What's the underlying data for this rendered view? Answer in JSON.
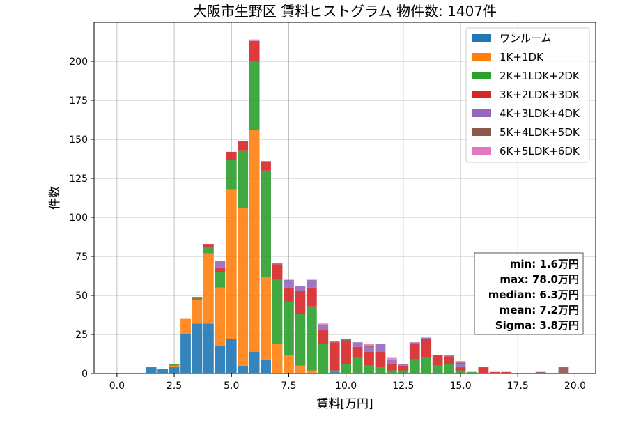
{
  "chart_data": {
    "type": "bar",
    "stacked": true,
    "title": "大阪市生野区 賃料ヒストグラム 物件数: 1407件",
    "xlabel": "賃料[万円]",
    "ylabel": "件数",
    "xlim": [
      -1.0,
      20.9
    ],
    "ylim": [
      0,
      225
    ],
    "xticks": [
      0.0,
      2.5,
      5.0,
      7.5,
      10.0,
      12.5,
      15.0,
      17.5,
      20.0
    ],
    "xtick_labels": [
      "0.0",
      "2.5",
      "5.0",
      "7.5",
      "10.0",
      "12.5",
      "15.0",
      "17.5",
      "20.0"
    ],
    "yticks": [
      0,
      25,
      50,
      75,
      100,
      125,
      150,
      175,
      200
    ],
    "ytick_labels": [
      "0",
      "25",
      "50",
      "75",
      "100",
      "125",
      "150",
      "175",
      "200"
    ],
    "grid": true,
    "bin_width": 0.5,
    "bins": [
      1.5,
      2.0,
      2.5,
      3.0,
      3.5,
      4.0,
      4.5,
      5.0,
      5.5,
      6.0,
      6.5,
      7.0,
      7.5,
      8.0,
      8.5,
      9.0,
      9.5,
      10.0,
      10.5,
      11.0,
      11.5,
      12.0,
      12.5,
      13.0,
      13.5,
      14.0,
      14.5,
      15.0,
      15.5,
      16.0,
      16.5,
      17.0,
      17.5,
      18.0,
      18.5,
      19.0,
      19.5
    ],
    "series": [
      {
        "name": "ワンルーム",
        "color": "#1f77b4",
        "values": [
          4,
          3,
          4,
          25,
          32,
          32,
          18,
          22,
          5,
          14,
          9,
          0,
          0,
          0,
          0,
          0,
          1,
          0,
          0,
          0,
          0,
          0,
          0,
          0,
          0,
          0,
          0,
          0,
          0,
          0,
          0,
          0,
          0,
          0,
          0,
          0,
          0
        ]
      },
      {
        "name": "1K+1DK",
        "color": "#ff7f0e",
        "values": [
          0,
          0,
          1,
          10,
          15,
          45,
          37,
          96,
          101,
          142,
          53,
          19,
          12,
          5,
          2,
          0,
          0,
          0,
          0,
          0,
          0,
          0,
          0,
          0,
          0,
          0,
          0,
          0,
          0,
          0,
          0,
          0,
          0,
          0,
          0,
          0,
          0
        ]
      },
      {
        "name": "2K+1LDK+2DK",
        "color": "#2ca02c",
        "values": [
          0,
          0,
          1,
          0,
          1,
          4,
          10,
          19,
          37,
          44,
          68,
          41,
          34,
          33,
          41,
          19,
          1,
          6,
          10,
          5,
          4,
          2,
          2,
          9,
          10,
          5,
          6,
          2,
          1,
          0,
          0,
          0,
          0,
          0,
          0,
          0,
          0
        ]
      },
      {
        "name": "3K+2LDK+3DK",
        "color": "#d62728",
        "values": [
          0,
          0,
          0,
          0,
          1,
          2,
          3,
          5,
          6,
          13,
          6,
          10,
          9,
          15,
          12,
          9,
          18,
          15,
          7,
          9,
          10,
          4,
          3,
          10,
          12,
          7,
          5,
          2,
          0,
          4,
          1,
          1,
          0,
          0,
          0,
          0,
          0
        ]
      },
      {
        "name": "4K+3LDK+4DK",
        "color": "#9467bd",
        "values": [
          0,
          0,
          0,
          0,
          0,
          0,
          4,
          0,
          0,
          0,
          0,
          1,
          5,
          3,
          5,
          3,
          1,
          0,
          3,
          3,
          5,
          3,
          1,
          1,
          1,
          0,
          1,
          2,
          0,
          0,
          0,
          0,
          0,
          0,
          0,
          0,
          0
        ]
      },
      {
        "name": "5K+4LDK+5DK",
        "color": "#8c564b",
        "values": [
          0,
          0,
          0,
          0,
          0,
          0,
          0,
          0,
          0,
          0,
          0,
          0,
          0,
          0,
          0,
          0,
          0,
          1,
          0,
          1,
          0,
          0,
          0,
          0,
          0,
          0,
          0,
          1,
          0,
          0,
          0,
          0,
          0,
          0,
          1,
          0,
          4
        ]
      },
      {
        "name": "6K+5LDK+6DK",
        "color": "#e377c2",
        "values": [
          0,
          0,
          0,
          0,
          0,
          0,
          0,
          0,
          0,
          1,
          0,
          0,
          0,
          0,
          0,
          1,
          0,
          0,
          0,
          1,
          0,
          1,
          0,
          0,
          0,
          0,
          0,
          1,
          0,
          0,
          0,
          0,
          0,
          0,
          0,
          0,
          0
        ]
      }
    ],
    "legend_placement": "top-right",
    "stats_box": {
      "lines": [
        "min: 1.6万円",
        "max: 78.0万円",
        "median: 6.3万円",
        "mean: 7.2万円",
        "Sigma: 3.8万円"
      ]
    }
  }
}
